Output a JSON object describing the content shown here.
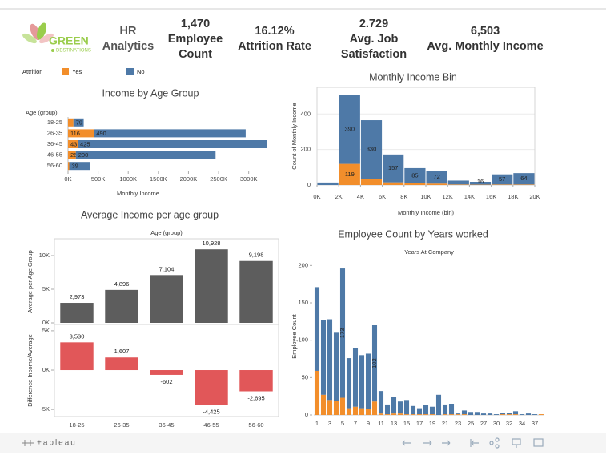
{
  "header": {
    "logo": {
      "name": "GREEN",
      "tagline": "DESTINATIONS"
    },
    "title": "HR Analytics",
    "kpis": [
      {
        "value": "1,470",
        "label": "Employee Count"
      },
      {
        "value": "16.12%",
        "label": "Attrition Rate"
      },
      {
        "value": "2.729",
        "label": "Avg. Job Satisfaction"
      },
      {
        "value": "6,503",
        "label": "Avg. Monthly Income"
      }
    ]
  },
  "chart_data": [
    {
      "type": "bar",
      "orientation": "horizontal",
      "stacked": true,
      "title": "Income by Age Group",
      "legend_title": "Attrition",
      "y_label": "Age (group)",
      "x_label": "Monthly Income",
      "categories": [
        "18-25",
        "26-35",
        "36-45",
        "46-55",
        "56-60"
      ],
      "series": [
        {
          "name": "Yes",
          "color": "#f28e2b",
          "values": [
            90000,
            430000,
            160000,
            130000,
            20000
          ],
          "counts": [
            null,
            116,
            43,
            26,
            null
          ]
        },
        {
          "name": "No",
          "color": "#4e79a7",
          "values": [
            170000,
            2520000,
            3150000,
            2320000,
            350000
          ],
          "counts": [
            79,
            490,
            425,
            200,
            39
          ]
        }
      ],
      "xlim": [
        0,
        3390000
      ],
      "xticks": [
        {
          "value": 0,
          "label": "0K"
        },
        {
          "value": 500000,
          "label": "500K"
        },
        {
          "value": 1000000,
          "label": "1000K"
        },
        {
          "value": 1500000,
          "label": "1500K"
        },
        {
          "value": 2000000,
          "label": "2000K"
        },
        {
          "value": 2500000,
          "label": "2500K"
        },
        {
          "value": 3000000,
          "label": "3000K"
        }
      ]
    },
    {
      "type": "histogram",
      "stacked": true,
      "title": "Monthly Income Bin",
      "y_label": "Count of Monthly Income",
      "x_label": "Monthly Income (bin)",
      "bins": [
        0,
        2000,
        4000,
        6000,
        8000,
        10000,
        12000,
        14000,
        16000,
        18000,
        20000
      ],
      "series": [
        {
          "color": "#f28e2b",
          "values": [
            0,
            119,
            35,
            15,
            10,
            8,
            3,
            2,
            3,
            3
          ],
          "value_labels": [
            null,
            "119",
            null,
            null,
            null,
            null,
            null,
            null,
            null,
            null
          ]
        },
        {
          "color": "#4e79a7",
          "values": [
            14,
            390,
            330,
            157,
            85,
            72,
            22,
            16,
            57,
            64
          ],
          "value_labels": [
            null,
            "390",
            "330",
            "157",
            "85",
            "72",
            null,
            "16",
            "57",
            "64"
          ]
        }
      ],
      "xlim": [
        0,
        20000
      ],
      "xticks": [
        {
          "value": 0,
          "label": "0K"
        },
        {
          "value": 2000,
          "label": "2K"
        },
        {
          "value": 4000,
          "label": "4K"
        },
        {
          "value": 6000,
          "label": "6K"
        },
        {
          "value": 8000,
          "label": "8K"
        },
        {
          "value": 10000,
          "label": "10K"
        },
        {
          "value": 12000,
          "label": "12K"
        },
        {
          "value": 14000,
          "label": "14K"
        },
        {
          "value": 16000,
          "label": "16K"
        },
        {
          "value": 18000,
          "label": "18K"
        },
        {
          "value": 20000,
          "label": "20K"
        }
      ],
      "ylim": [
        0,
        550
      ],
      "yticks": [
        0,
        200,
        400
      ],
      "grid": true
    },
    {
      "type": "bar",
      "orientation": "vertical",
      "stacked": false,
      "title": "Average Income per age group",
      "x_label": "Age (group)",
      "y_label": "Average per Age Group",
      "y2_label": "Difference Income/Average",
      "categories": [
        "18-25",
        "26-35",
        "36-45",
        "46-55",
        "56-60"
      ],
      "series": [
        {
          "color": "#5d5d5d",
          "values": [
            2973,
            4896,
            7104,
            10928,
            9198
          ],
          "value_labels": [
            "2,973",
            "4,896",
            "7,104",
            "10,928",
            "9,198"
          ]
        },
        {
          "color": "#e15759",
          "axis": "y2",
          "values": [
            3530,
            1607,
            -602,
            -4425,
            -2695
          ],
          "value_labels": [
            "3,530",
            "1,607",
            "-602",
            "-4,425",
            "-2,695"
          ]
        }
      ],
      "ylim": [
        0,
        12500
      ],
      "yticks": [
        {
          "value": 0,
          "label": "0K"
        },
        {
          "value": 5000,
          "label": "5K"
        },
        {
          "value": 10000,
          "label": "10K"
        }
      ],
      "y2lim": [
        -5900,
        5600
      ],
      "y2ticks": [
        {
          "value": 5000,
          "label": "5K"
        },
        {
          "value": 0,
          "label": "0K"
        },
        {
          "value": -5000,
          "label": "-5K"
        }
      ]
    },
    {
      "type": "bar",
      "orientation": "vertical",
      "stacked": true,
      "title": "Employee Count by Years worked",
      "x_label": "Years At Company",
      "y_label": "Employee Count",
      "categories": [
        "1",
        null,
        "3",
        null,
        "5",
        null,
        "7",
        null,
        "9",
        null,
        "11",
        null,
        "13",
        null,
        "15",
        null,
        "17",
        null,
        "19",
        null,
        "21",
        null,
        "23",
        null,
        "25",
        null,
        "27",
        null,
        "30",
        null,
        "32",
        null,
        "34",
        null,
        "37",
        null
      ],
      "series": [
        {
          "color": "#f28e2b",
          "values": [
            59,
            27,
            20,
            19,
            23,
            9,
            11,
            9,
            8,
            18,
            2,
            1,
            2,
            2,
            1,
            1,
            1,
            1,
            1,
            0,
            1,
            1,
            1,
            1,
            0,
            0,
            0,
            0,
            0,
            1,
            1,
            1,
            0,
            0,
            0,
            1
          ]
        },
        {
          "color": "#4e79a7",
          "values": [
            112,
            100,
            108,
            91,
            173,
            67,
            79,
            71,
            74,
            102,
            30,
            13,
            22,
            16,
            19,
            11,
            8,
            12,
            10,
            27,
            13,
            14,
            1,
            5,
            4,
            4,
            2,
            2,
            1,
            2,
            2,
            4,
            1,
            2,
            1,
            0
          ],
          "value_labels": [
            null,
            null,
            null,
            null,
            "173",
            null,
            null,
            null,
            null,
            "102",
            null,
            null,
            null,
            null,
            null,
            null,
            null,
            null,
            null,
            null,
            null,
            null,
            null,
            null,
            null,
            null,
            null,
            null,
            null,
            null,
            null,
            null,
            null,
            null,
            null,
            null
          ]
        }
      ],
      "ylim": [
        0,
        210
      ],
      "yticks": [
        0,
        50,
        100,
        150,
        200
      ]
    }
  ],
  "footer": {
    "brand": "+ableau"
  }
}
